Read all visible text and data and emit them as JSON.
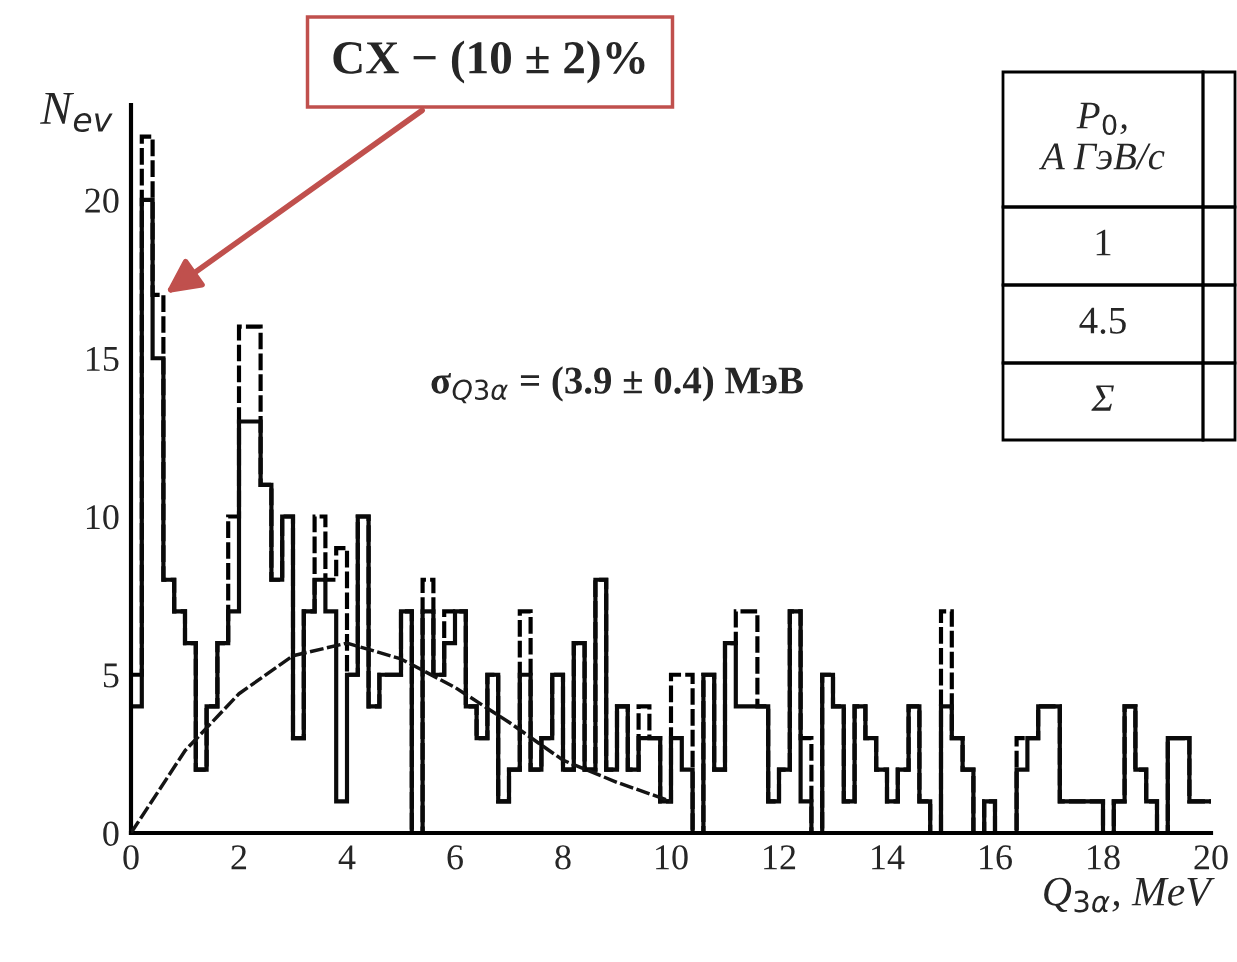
{
  "chart_data": {
    "type": "histogram",
    "xlabel": "Q$_{3α}$, MeV",
    "ylabel": "N$_{ev}$",
    "bins": [
      0,
      0.2,
      0.4,
      0.6,
      0.8,
      1.0,
      1.2,
      1.4,
      1.6,
      1.8,
      2.0,
      2.2,
      2.4,
      2.6,
      2.8,
      3.0,
      3.2,
      3.4,
      3.6,
      3.8,
      4.0,
      4.2,
      4.4,
      4.6,
      4.8,
      5.0,
      5.2,
      5.4,
      5.6,
      5.8,
      6.0,
      6.2,
      6.4,
      6.6,
      6.8,
      7.0,
      7.2,
      7.4,
      7.6,
      7.8,
      8.0,
      8.2,
      8.4,
      8.6,
      8.8,
      9.0,
      9.2,
      9.4,
      9.6,
      9.8,
      10.0,
      10.2,
      10.4,
      10.6,
      10.8,
      11.0,
      11.2,
      11.4,
      11.6,
      11.8,
      12.0,
      12.2,
      12.4,
      12.6,
      12.8,
      13.0,
      13.2,
      13.4,
      13.6,
      13.8,
      14.0,
      14.2,
      14.4,
      14.6,
      14.8,
      15.0,
      15.2,
      15.4,
      15.6,
      15.8,
      16.0,
      16.2,
      16.4,
      16.6,
      16.8,
      17.0,
      17.2,
      17.4,
      17.6,
      17.8,
      18.0,
      18.2,
      18.4,
      18.6,
      18.8,
      19.0,
      19.2,
      19.4,
      19.6,
      19.8,
      20.0
    ],
    "series": [
      {
        "type": "histogram",
        "line_style": "dashed",
        "color": "#000000",
        "values": [
          5,
          22,
          17,
          8,
          7,
          6,
          2,
          4,
          6,
          10,
          16,
          16,
          11,
          8,
          10,
          3,
          7,
          10,
          8,
          9,
          5,
          10,
          4,
          5,
          5,
          7,
          0,
          8,
          5,
          7,
          7,
          4,
          3,
          5,
          1,
          2,
          7,
          2,
          3,
          5,
          2,
          6,
          2,
          8,
          2,
          4,
          2,
          4,
          3,
          1,
          5,
          5,
          0,
          5,
          2,
          6,
          7,
          7,
          4,
          1,
          2,
          7,
          3,
          0,
          5,
          4,
          1,
          4,
          3,
          2,
          1,
          2,
          4,
          1,
          0,
          7,
          3,
          2,
          0,
          1,
          0,
          0,
          3,
          3,
          4,
          4,
          1,
          1,
          1,
          1,
          0,
          1,
          4,
          2,
          1,
          0,
          3,
          3,
          1,
          1
        ]
      },
      {
        "type": "histogram",
        "line_style": "solid",
        "color": "#0a0a0a",
        "values": [
          4,
          20,
          15,
          8,
          7,
          6,
          2,
          4,
          6,
          7,
          13,
          13,
          11,
          8,
          10,
          3,
          7,
          8,
          7,
          1,
          5,
          10,
          4,
          5,
          5,
          7,
          0,
          7,
          5,
          6,
          7,
          4,
          3,
          5,
          1,
          2,
          5,
          2,
          3,
          5,
          2,
          6,
          2,
          8,
          2,
          4,
          2,
          3,
          3,
          1,
          3,
          2,
          0,
          5,
          2,
          6,
          4,
          4,
          4,
          1,
          2,
          7,
          1,
          0,
          5,
          4,
          1,
          4,
          3,
          2,
          1,
          2,
          4,
          1,
          0,
          4,
          3,
          2,
          0,
          1,
          0,
          0,
          2,
          3,
          4,
          4,
          1,
          1,
          1,
          1,
          0,
          1,
          4,
          2,
          1,
          0,
          3,
          3,
          1,
          1
        ]
      },
      {
        "type": "line",
        "line_style": "dashed",
        "color": "#141414",
        "x": [
          0,
          1,
          2,
          3,
          4,
          5,
          6,
          7,
          8,
          9,
          10
        ],
        "values": [
          0,
          2.6,
          4.4,
          5.6,
          6.0,
          5.5,
          4.6,
          3.5,
          2.3,
          1.6,
          1.0
        ]
      }
    ],
    "xlim": [
      0,
      20
    ],
    "ylim": [
      0,
      23
    ],
    "xticks": [
      0,
      2,
      4,
      6,
      8,
      10,
      12,
      14,
      16,
      18,
      20
    ],
    "yticks": [
      0,
      5,
      10,
      15,
      20
    ],
    "grid": false,
    "annotations": [
      {
        "text": "CX − (10 ± 2)%",
        "x": 0.6,
        "y": 17
      },
      "σ$_{Q3α}$ = (3.9 ± 0.4) МэВ",
      "P$_{0}$,\nA ГэВ/c",
      "1",
      "4.5",
      "Σ"
    ]
  }
}
